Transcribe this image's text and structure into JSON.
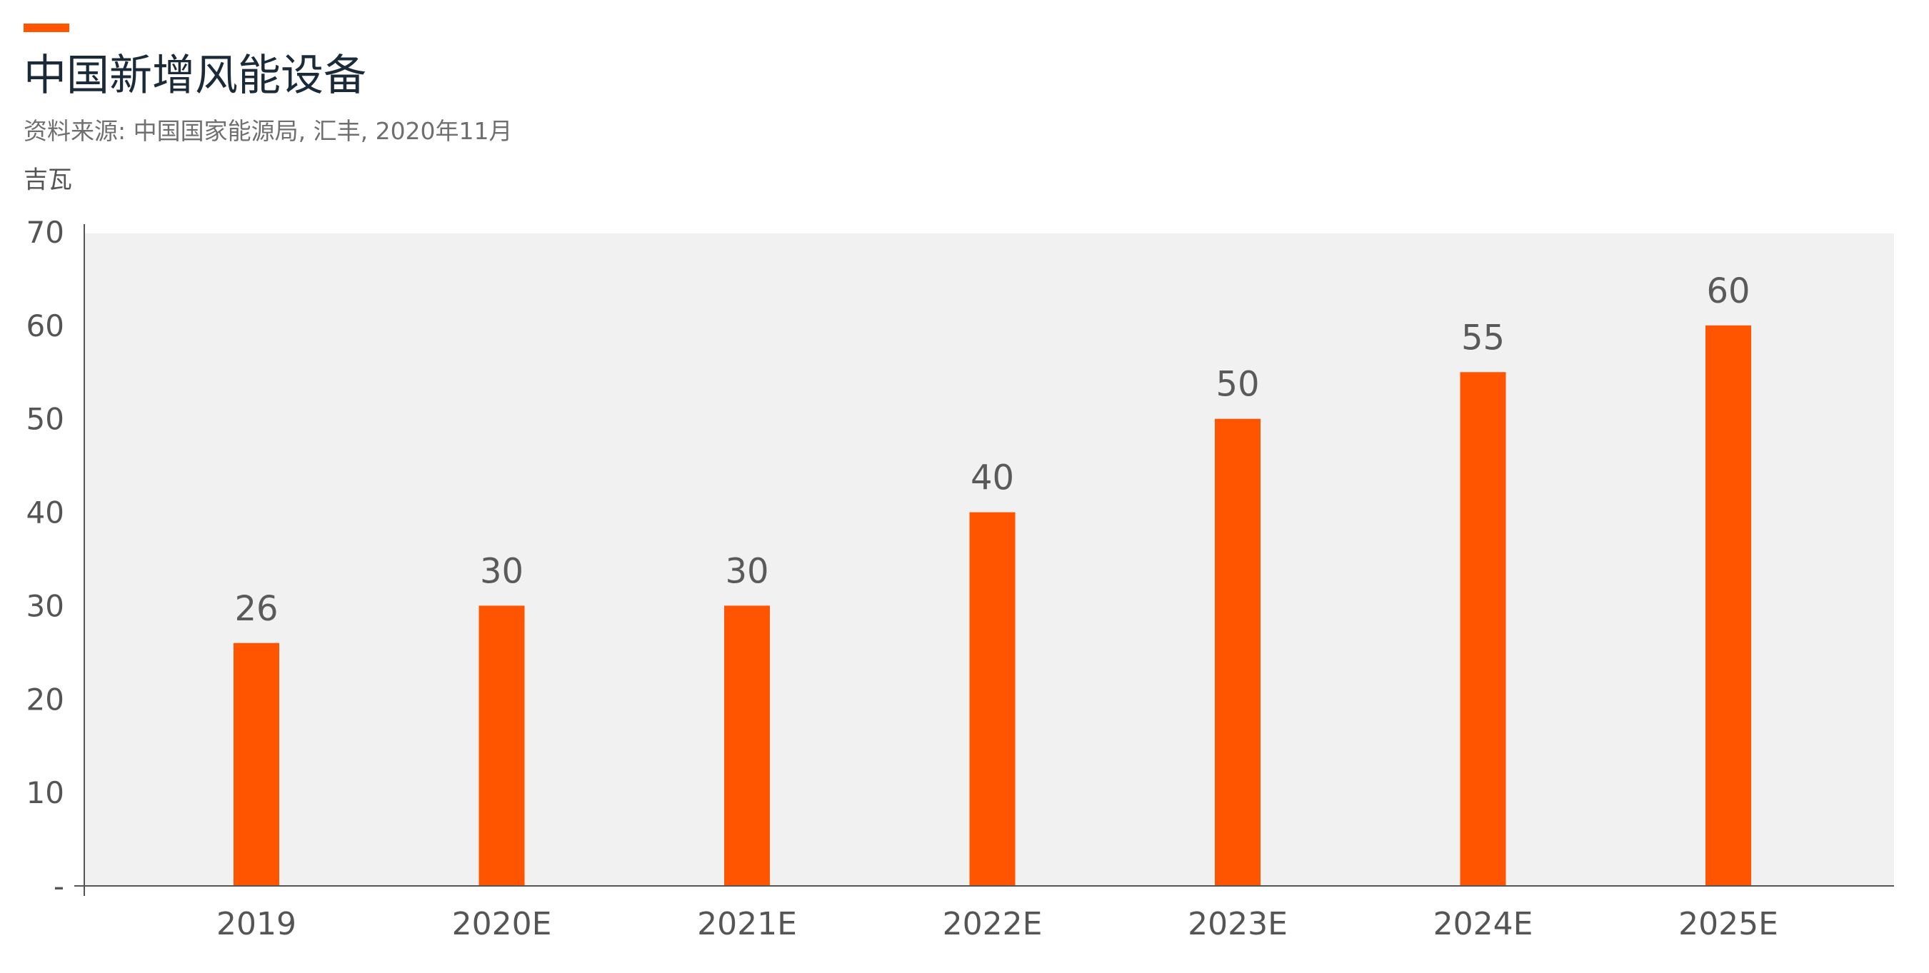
{
  "header": {
    "title": "中国新增风能设备",
    "source": "资料来源: 中国国家能源局, 汇丰, 2020年11月",
    "unit": "吉瓦"
  },
  "colors": {
    "accent": "#ff5500",
    "bar": "#ff5500",
    "plot_background": "#f1f1f1",
    "axis": "#555555"
  },
  "chart_data": {
    "type": "bar",
    "title": "中国新增风能设备",
    "ylabel": "吉瓦",
    "xlabel": "",
    "categories": [
      "2019",
      "2020E",
      "2021E",
      "2022E",
      "2023E",
      "2024E",
      "2025E"
    ],
    "values": [
      26,
      30,
      30,
      40,
      50,
      55,
      60
    ],
    "value_labels": [
      "26",
      "30",
      "30",
      "40",
      "50",
      "55",
      "60"
    ],
    "ylim": [
      0,
      70
    ],
    "yticks": [
      0,
      10,
      20,
      30,
      40,
      50,
      60,
      70
    ],
    "ytick_labels": [
      "-",
      "10",
      "20",
      "30",
      "40",
      "50",
      "60",
      "70"
    ],
    "grid": false,
    "legend": "none"
  }
}
